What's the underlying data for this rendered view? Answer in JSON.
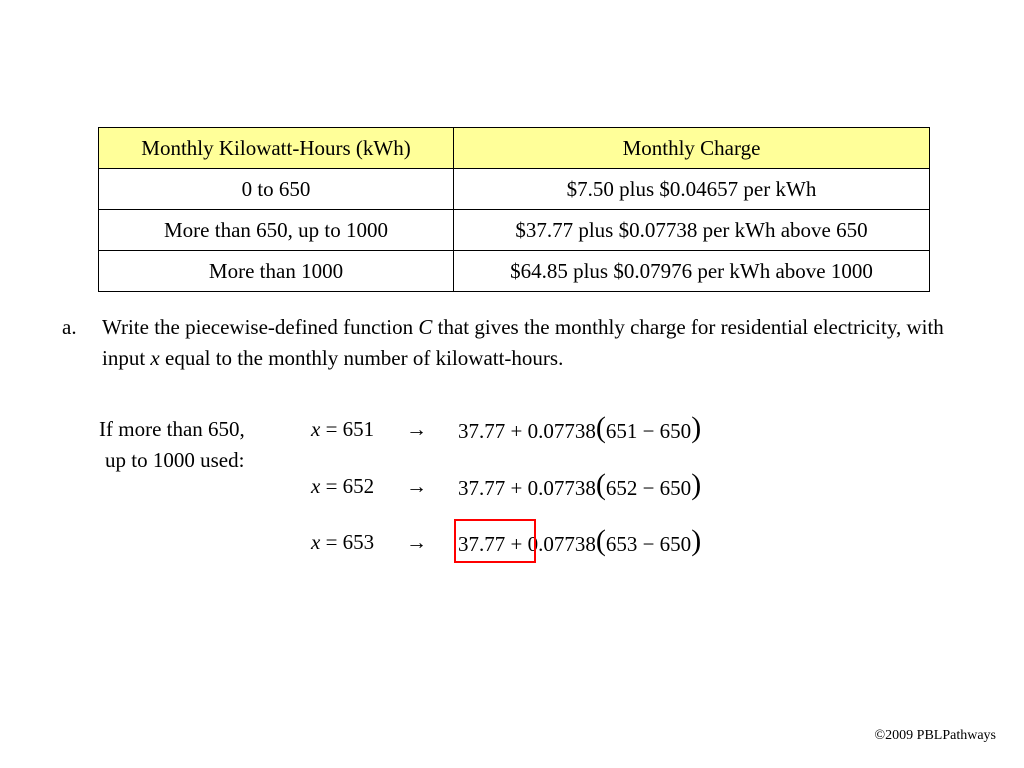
{
  "table": {
    "headers": [
      "Monthly Kilowatt-Hours (kWh)",
      "Monthly Charge"
    ],
    "header_bg_color": "#ffff99",
    "rows": [
      [
        "0 to 650",
        "$7.50 plus $0.04657 per kWh"
      ],
      [
        "More than 650, up to 1000",
        "$37.77 plus $0.07738 per kWh above 650"
      ],
      [
        "More than 1000",
        "$64.85 plus $0.07976 per kWh above 1000"
      ]
    ]
  },
  "question": {
    "label": "a.",
    "text_part1": "Write the piecewise-defined function ",
    "var_c": "C",
    "text_part2": " that gives the monthly charge for residential electricity, with input ",
    "var_x": "x",
    "text_part3": " equal to the monthly number of kilowatt-hours."
  },
  "condition": {
    "line1": "If more than 650,",
    "line2": "up to 1000 used:"
  },
  "equations": [
    {
      "var": "x",
      "eq": " = 651",
      "arrow": "→",
      "base": "37.77 + 0.07738",
      "open": "(",
      "diff": "651 − 650",
      "close": ")"
    },
    {
      "var": "x",
      "eq": " = 652",
      "arrow": "→",
      "base": "37.77 + 0.07738",
      "open": "(",
      "diff": "652 − 650",
      "close": ")"
    },
    {
      "var": "x",
      "eq": " = 653",
      "arrow": "→",
      "base": "37.77 + 0.07738",
      "open": "(",
      "diff": "653 − 650",
      "close": ")"
    }
  ],
  "highlight_color": "#ff0000",
  "footer": {
    "copyright": "©2009 PBLPathways"
  }
}
